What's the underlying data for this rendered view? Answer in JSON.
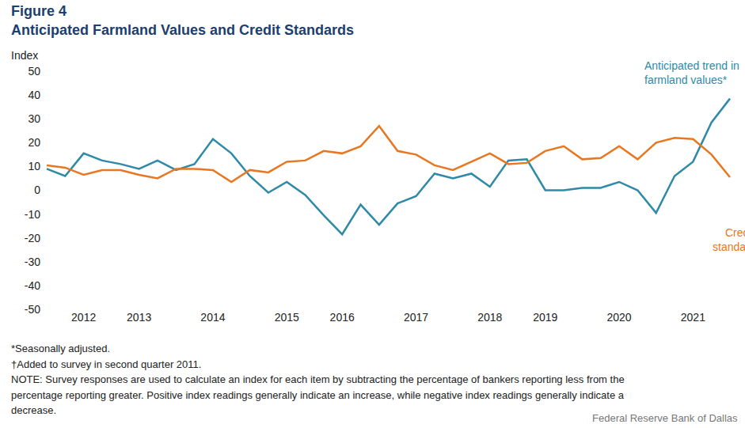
{
  "chart_data": {
    "type": "line",
    "title": "Figure 4",
    "subtitle": "Anticipated Farmland Values and Credit Standards",
    "y_label": "Index",
    "categories": [
      null,
      null,
      "2012",
      null,
      null,
      "2013",
      null,
      null,
      null,
      "2014",
      null,
      null,
      null,
      "2015",
      null,
      null,
      "2016",
      null,
      null,
      null,
      "2017",
      null,
      null,
      null,
      "2018",
      null,
      null,
      "2019",
      null,
      null,
      null,
      "2020",
      null,
      null,
      null,
      "2021",
      null,
      null
    ],
    "series": [
      {
        "name": "Anticipated trend in farmland values*",
        "color": "#2e8aa6",
        "values": [
          9,
          6,
          15.5,
          12.5,
          11,
          9,
          12.5,
          8.5,
          11,
          21.5,
          15.5,
          6,
          -1,
          3.5,
          -2,
          -10.5,
          -18.5,
          -6,
          -14.5,
          -5.5,
          -2.5,
          7,
          5,
          7,
          1.5,
          12.5,
          13,
          0,
          0,
          1,
          1,
          3.5,
          0,
          -9.5,
          6,
          12,
          28.5,
          38.5
        ]
      },
      {
        "name": "Credit standards†",
        "color": "#e87722",
        "values": [
          10.5,
          9.5,
          6.5,
          8.5,
          8.5,
          6.5,
          5,
          9,
          9,
          8.5,
          3.5,
          8.5,
          7.5,
          12,
          12.5,
          16.5,
          15.5,
          18.5,
          27,
          16.5,
          15,
          10.5,
          8.5,
          12,
          15.5,
          11,
          11.5,
          16.5,
          18.5,
          13,
          13.5,
          18.5,
          13,
          20,
          22,
          21.5,
          15,
          5.5
        ]
      }
    ],
    "ylim": [
      -50,
      50
    ],
    "yticks": [
      -50,
      -40,
      -30,
      -20,
      -10,
      0,
      10,
      20,
      30,
      40,
      50
    ],
    "grid": false,
    "notes": [
      "*Seasonally adjusted.",
      "†Added to survey in second quarter 2011.",
      "NOTE: Survey responses are used to calculate an index for each item by subtracting the percentage of bankers reporting less from the",
      "percentage reporting greater. Positive index readings generally indicate an increase, while negative index readings generally indicate a",
      "decrease."
    ],
    "source": "Federal Reserve Bank of Dallas"
  }
}
